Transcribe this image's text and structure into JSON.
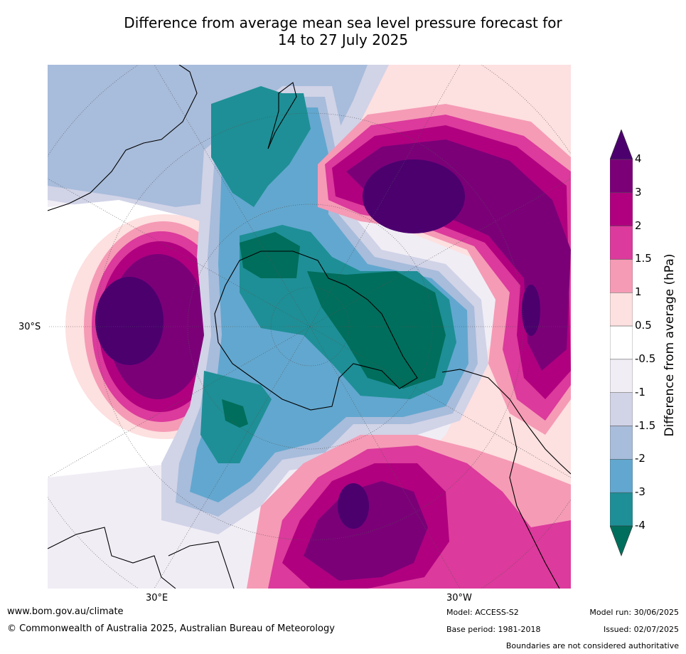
{
  "title_line1": "Difference from average mean sea level pressure forecast for",
  "title_line2": "14 to 27 July 2025",
  "axis_labels": {
    "lat_30s": "30°S",
    "lon_30e": "30°E",
    "lon_30w": "30°W"
  },
  "colorbar": {
    "title": "Difference from average (hPa)",
    "ticks": [
      "4",
      "3",
      "2",
      "1.5",
      "1",
      "0.5",
      "-0.5",
      "-1",
      "-1.5",
      "-2",
      "-3",
      "-4"
    ],
    "colors": [
      "#4b006e",
      "#7b0078",
      "#b0007f",
      "#dc3a9c",
      "#f59bb6",
      "#fde0e0",
      "#ffffff",
      "#f1edf5",
      "#d1d3e7",
      "#a8bcdb",
      "#62a7cf",
      "#1e8f96",
      "#006e5c"
    ]
  },
  "footer": {
    "website": "www.bom.gov.au/climate",
    "copyright": "© Commonwealth of Australia 2025, Australian Bureau of Meteorology",
    "model": "Model: ACCESS-S2",
    "base_period": "Base period: 1981-2018",
    "model_run": "Model run: 30/06/2025",
    "issued": "Issued: 02/07/2025",
    "disclaimer": "Boundaries are not considered authoritative"
  }
}
